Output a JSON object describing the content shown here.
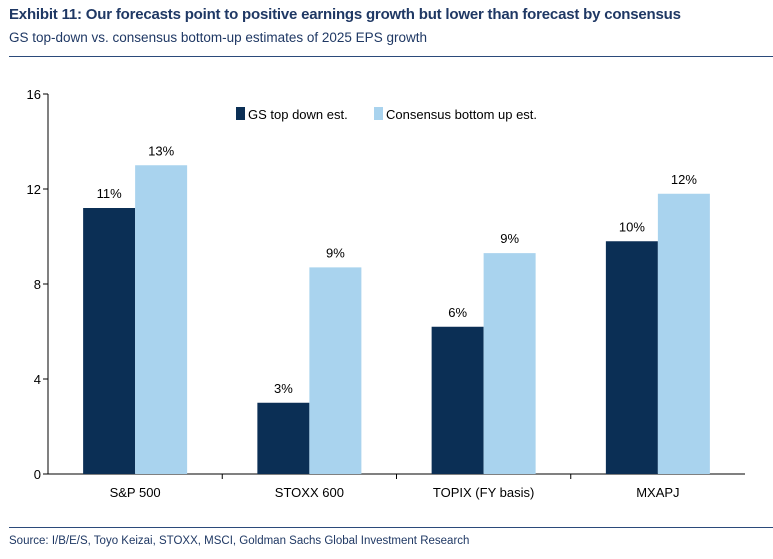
{
  "header": {
    "title": "Exhibit 11: Our forecasts point to positive earnings growth but lower than forecast by consensus",
    "subtitle": "GS top-down vs. consensus bottom-up estimates of 2025 EPS growth"
  },
  "footer": {
    "source": "Source: I/B/E/S, Toyo Keizai, STOXX, MSCI, Goldman Sachs Global Investment Research"
  },
  "colors": {
    "gs": "#0b2f55",
    "consensus": "#a9d3ee",
    "axis": "#000000",
    "text_brand": "#1f3864"
  },
  "chart_data": {
    "type": "bar",
    "title": "Exhibit 11: Our forecasts point to positive earnings growth but lower than forecast by consensus",
    "subtitle": "GS top-down vs. consensus bottom-up estimates of 2025 EPS growth",
    "xlabel": "",
    "ylabel": "",
    "ylim": [
      0,
      16
    ],
    "yticks": [
      0,
      4,
      8,
      12,
      16
    ],
    "grid": false,
    "legend_position": "top-center",
    "categories": [
      "S&P 500",
      "STOXX 600",
      "TOPIX (FY basis)",
      "MXAPJ"
    ],
    "series": [
      {
        "name": "GS top down est.",
        "values": [
          11.2,
          3.0,
          6.2,
          9.8
        ],
        "labels": [
          "11%",
          "3%",
          "6%",
          "10%"
        ]
      },
      {
        "name": "Consensus bottom up est.",
        "values": [
          13.0,
          8.7,
          9.3,
          11.8
        ],
        "labels": [
          "13%",
          "9%",
          "9%",
          "12%"
        ]
      }
    ]
  }
}
